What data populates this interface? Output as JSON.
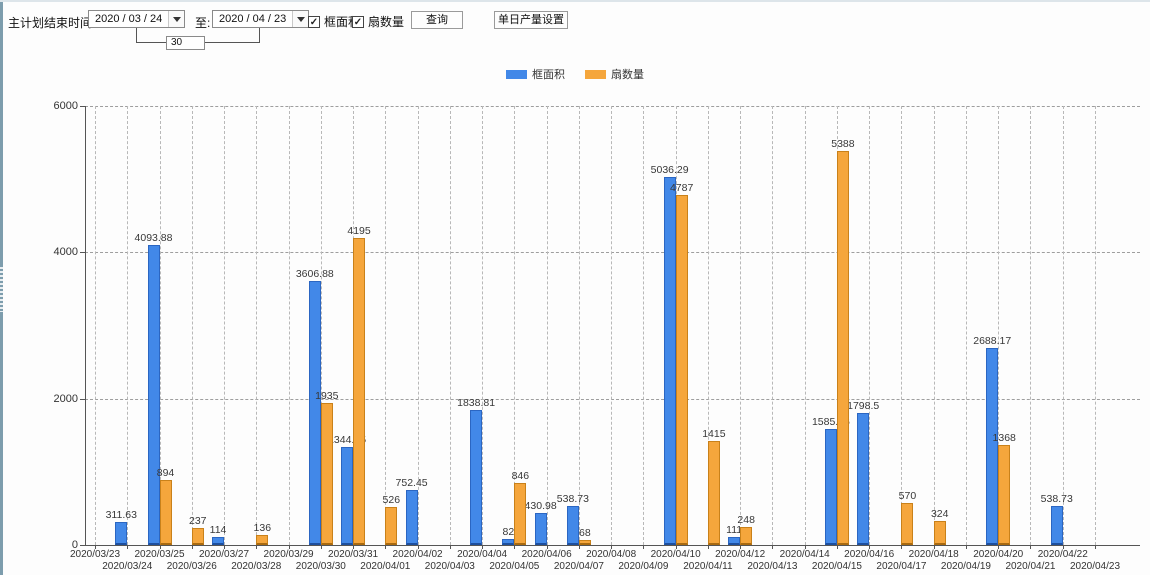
{
  "toolbar": {
    "title_label": "主计划结束时间:",
    "date_from": "2020 / 03 / 24",
    "to_label": "至:",
    "date_to": "2020 / 04 / 23",
    "days_between": "30",
    "checkboxes": [
      {
        "label": "框面积",
        "checked": true
      },
      {
        "label": "扇数量",
        "checked": true
      }
    ],
    "query_button": "查询",
    "daily_output_button": "单日产量设置"
  },
  "legend": [
    {
      "label": "框面积",
      "color": "#4288E8"
    },
    {
      "label": "扇数量",
      "color": "#F5A63C"
    }
  ],
  "chart_data": {
    "type": "bar",
    "title": "",
    "xlabel": "",
    "ylabel": "",
    "ylim": [
      0,
      6000
    ],
    "yticks": [
      0,
      2000,
      4000,
      6000
    ],
    "grid": true,
    "legend_position": "top",
    "categories": [
      "2020/03/23",
      "2020/03/24",
      "2020/03/25",
      "2020/03/26",
      "2020/03/27",
      "2020/03/28",
      "2020/03/29",
      "2020/03/30",
      "2020/03/31",
      "2020/04/01",
      "2020/04/02",
      "2020/04/03",
      "2020/04/04",
      "2020/04/05",
      "2020/04/06",
      "2020/04/07",
      "2020/04/08",
      "2020/04/09",
      "2020/04/10",
      "2020/04/11",
      "2020/04/12",
      "2020/04/13",
      "2020/04/14",
      "2020/04/15",
      "2020/04/16",
      "2020/04/17",
      "2020/04/18",
      "2020/04/19",
      "2020/04/20",
      "2020/04/21",
      "2020/04/22",
      "2020/04/23"
    ],
    "series": [
      {
        "name": "框面积",
        "color": "#4288E8",
        "values": [
          null,
          311.63,
          4093.88,
          null,
          114,
          null,
          null,
          3606.88,
          1344.95,
          null,
          752.45,
          null,
          1838.81,
          82,
          430.98,
          538.73,
          null,
          null,
          5036.29,
          null,
          111,
          null,
          null,
          1585.96,
          1798.5,
          null,
          null,
          null,
          2688.17,
          null,
          538.73,
          null
        ]
      },
      {
        "name": "扇数量",
        "color": "#F5A63C",
        "values": [
          null,
          null,
          894,
          237,
          null,
          136,
          null,
          1935,
          4195,
          526,
          null,
          null,
          null,
          846,
          null,
          68,
          null,
          null,
          4787,
          1415,
          248,
          null,
          null,
          5388,
          null,
          570,
          324,
          null,
          1368,
          null,
          null,
          null
        ]
      }
    ]
  }
}
